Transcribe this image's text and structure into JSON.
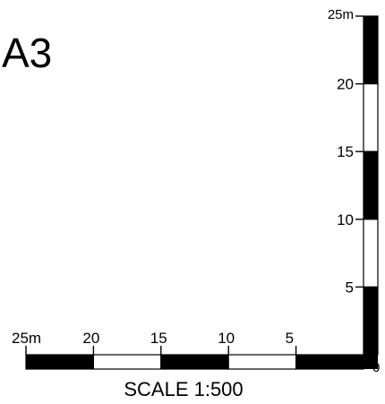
{
  "sheet": {
    "label": "A3"
  },
  "scale": {
    "caption": "SCALE 1:500"
  },
  "bars": {
    "fill_color": "#000000",
    "empty_color": "#ffffff",
    "horizontal_labels": [
      "25m",
      "20",
      "15",
      "10",
      "5"
    ],
    "vertical_labels": [
      "25m",
      "20",
      "15",
      "10",
      "5"
    ],
    "origin_label": "0",
    "segments_per_bar": 5,
    "segment_fill": [
      true,
      false,
      true,
      false,
      true
    ]
  }
}
